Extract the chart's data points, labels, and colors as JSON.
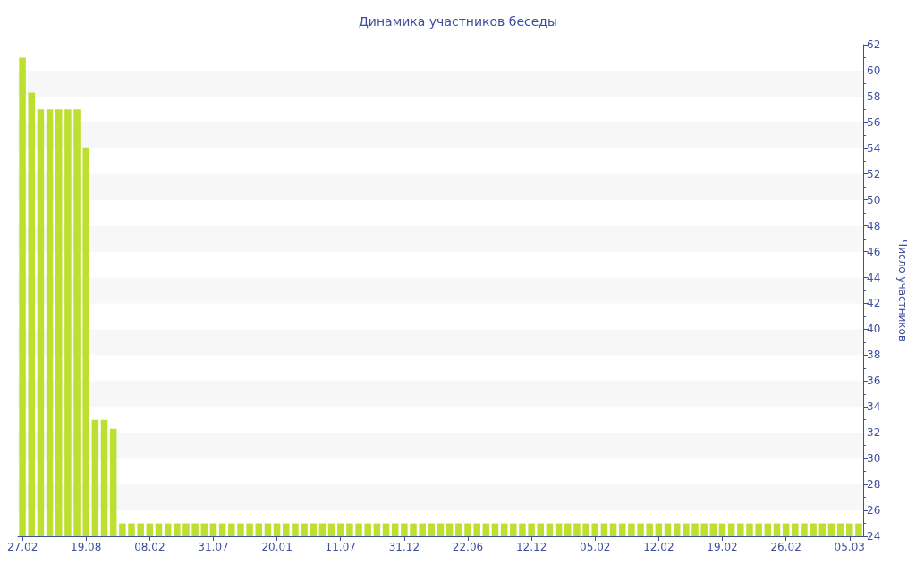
{
  "chart_data": {
    "type": "bar",
    "title": "Динамика участников беседы",
    "ylabel": "Число участников",
    "categories": [
      "27.02",
      null,
      null,
      null,
      null,
      null,
      null,
      "19.08",
      null,
      null,
      null,
      null,
      null,
      null,
      "08.02",
      null,
      null,
      null,
      null,
      null,
      null,
      "31.07",
      null,
      null,
      null,
      null,
      null,
      null,
      "20.01",
      null,
      null,
      null,
      null,
      null,
      null,
      "11.07",
      null,
      null,
      null,
      null,
      null,
      null,
      "31.12",
      null,
      null,
      null,
      null,
      null,
      null,
      "22.06",
      null,
      null,
      null,
      null,
      null,
      null,
      "12.12",
      null,
      null,
      null,
      null,
      null,
      null,
      "05.02",
      null,
      null,
      null,
      null,
      null,
      null,
      "12.02",
      null,
      null,
      null,
      null,
      null,
      null,
      "19.02",
      null,
      null,
      null,
      null,
      null,
      null,
      "26.02",
      null,
      null,
      null,
      null,
      null,
      null,
      "05.03",
      null
    ],
    "values": [
      61,
      58.3,
      57,
      57,
      57,
      57,
      57,
      54,
      33,
      33,
      32.3,
      25,
      25,
      25,
      25,
      25,
      25,
      25,
      25,
      25,
      25,
      25,
      25,
      25,
      25,
      25,
      25,
      25,
      25,
      25,
      25,
      25,
      25,
      25,
      25,
      25,
      25,
      25,
      25,
      25,
      25,
      25,
      25,
      25,
      25,
      25,
      25,
      25,
      25,
      25,
      25,
      25,
      25,
      25,
      25,
      25,
      25,
      25,
      25,
      25,
      25,
      25,
      25,
      25,
      25,
      25,
      25,
      25,
      25,
      25,
      25,
      25,
      25,
      25,
      25,
      25,
      25,
      25,
      25,
      25,
      25,
      25,
      25,
      25,
      25,
      25,
      25,
      25,
      25,
      25,
      25,
      25,
      25
    ],
    "color": "#bde030",
    "ylim": [
      24,
      62
    ],
    "yticks": [
      24,
      26,
      28,
      30,
      32,
      34,
      36,
      38,
      40,
      42,
      44,
      46,
      48,
      50,
      52,
      54,
      56,
      58,
      60,
      62
    ],
    "bands": [
      {
        "axis": "y",
        "from": 26,
        "to": 28,
        "color": "#f7f7f7"
      },
      {
        "axis": "y",
        "from": 30,
        "to": 32,
        "color": "#f7f7f7"
      },
      {
        "axis": "y",
        "from": 34,
        "to": 36,
        "color": "#f7f7f7"
      },
      {
        "axis": "y",
        "from": 38,
        "to": 40,
        "color": "#f7f7f7"
      },
      {
        "axis": "y",
        "from": 42,
        "to": 44,
        "color": "#f7f7f7"
      },
      {
        "axis": "y",
        "from": 46,
        "to": 48,
        "color": "#f7f7f7"
      },
      {
        "axis": "y",
        "from": 50,
        "to": 52,
        "color": "#f7f7f7"
      },
      {
        "axis": "y",
        "from": 54,
        "to": 56,
        "color": "#f7f7f7"
      },
      {
        "axis": "y",
        "from": 58,
        "to": 60,
        "color": "#f7f7f7"
      }
    ]
  }
}
